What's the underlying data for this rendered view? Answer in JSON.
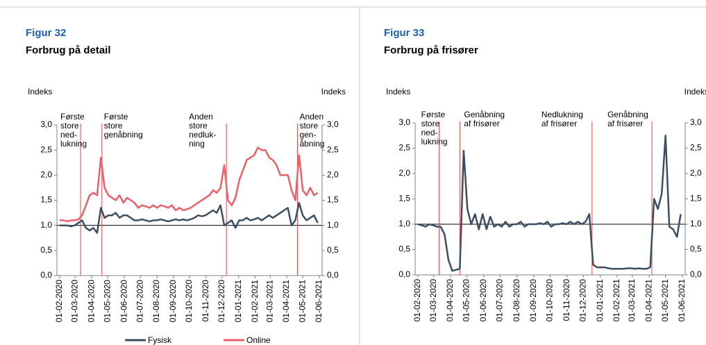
{
  "chart_data": [
    {
      "type": "line",
      "figure": "Figur 32",
      "title": "Forbrug på detail",
      "ylabel": "Indeks",
      "y2label": "Indeks",
      "ylim": [
        0,
        3
      ],
      "yticks": [
        {
          "value": 0,
          "label": "0,0"
        },
        {
          "value": 0.5,
          "label": "0,5"
        },
        {
          "value": 1,
          "label": "1,0"
        },
        {
          "value": 1.5,
          "label": "1,5"
        },
        {
          "value": 2,
          "label": "2,0"
        },
        {
          "value": 2.5,
          "label": "2,5"
        },
        {
          "value": 3,
          "label": "3,0"
        }
      ],
      "y2lim": [
        0,
        3
      ],
      "y2ticks": [
        {
          "value": 0,
          "label": "0,0"
        },
        {
          "value": 0.5,
          "label": "0,5"
        },
        {
          "value": 1,
          "label": "1,0"
        },
        {
          "value": 1.5,
          "label": "1,5"
        },
        {
          "value": 2,
          "label": "2,0"
        },
        {
          "value": 2.5,
          "label": "2,5"
        },
        {
          "value": 3,
          "label": "3,0"
        }
      ],
      "xlim": [
        "01-02-2020",
        "01-06-2021"
      ],
      "xticks": [
        "01-02-2020",
        "01-03-2020",
        "01-04-2020",
        "01-05-2020",
        "01-06-2020",
        "01-07-2020",
        "01-08-2020",
        "01-09-2020",
        "01-10-2020",
        "01-11-2020",
        "01-12-2020",
        "01-01-2021",
        "01-02-2021",
        "01-03-2021",
        "01-04-2021",
        "01-05-2021",
        "01-06-2021"
      ],
      "reference_line": 1,
      "annotations": [
        {
          "x": "11-03-2020",
          "lines": [
            "Første",
            "store",
            "ned-",
            "lukning"
          ]
        },
        {
          "x": "20-04-2020",
          "lines": [
            "Første",
            "store",
            "genåbning"
          ]
        },
        {
          "x": "09-12-2020",
          "lines": [
            "Anden",
            "store",
            "nedluk-",
            "ning"
          ]
        },
        {
          "x": "21-04-2021",
          "lines": [
            "Anden",
            "store",
            "gen-",
            "åbning"
          ]
        }
      ],
      "x": [
        "01-02-2020",
        "08-02-2020",
        "15-02-2020",
        "22-02-2020",
        "29-02-2020",
        "07-03-2020",
        "14-03-2020",
        "21-03-2020",
        "28-03-2020",
        "04-04-2020",
        "11-04-2020",
        "18-04-2020",
        "25-04-2020",
        "02-05-2020",
        "09-05-2020",
        "16-05-2020",
        "23-05-2020",
        "30-05-2020",
        "06-06-2020",
        "13-06-2020",
        "20-06-2020",
        "27-06-2020",
        "04-07-2020",
        "11-07-2020",
        "18-07-2020",
        "25-07-2020",
        "01-08-2020",
        "08-08-2020",
        "15-08-2020",
        "22-08-2020",
        "29-08-2020",
        "05-09-2020",
        "12-09-2020",
        "19-09-2020",
        "26-09-2020",
        "03-10-2020",
        "10-10-2020",
        "17-10-2020",
        "24-10-2020",
        "31-10-2020",
        "07-11-2020",
        "14-11-2020",
        "21-11-2020",
        "28-11-2020",
        "05-12-2020",
        "12-12-2020",
        "19-12-2020",
        "26-12-2020",
        "02-01-2021",
        "09-01-2021",
        "16-01-2021",
        "23-01-2021",
        "30-01-2021",
        "06-02-2021",
        "13-02-2021",
        "20-02-2021",
        "27-02-2021",
        "06-03-2021",
        "13-03-2021",
        "20-03-2021",
        "27-03-2021",
        "03-04-2021",
        "10-04-2021",
        "17-04-2021",
        "24-04-2021",
        "01-05-2021",
        "08-05-2021",
        "15-05-2021",
        "22-05-2021",
        "29-05-2021"
      ],
      "series": [
        {
          "name": "Fysisk",
          "color": "#3b4f60",
          "values": [
            1.0,
            1.0,
            1.0,
            0.98,
            1.0,
            1.05,
            1.1,
            0.95,
            0.9,
            0.95,
            0.85,
            1.35,
            1.15,
            1.2,
            1.2,
            1.25,
            1.15,
            1.2,
            1.2,
            1.15,
            1.1,
            1.1,
            1.12,
            1.1,
            1.08,
            1.1,
            1.1,
            1.12,
            1.1,
            1.08,
            1.1,
            1.12,
            1.1,
            1.12,
            1.1,
            1.12,
            1.15,
            1.2,
            1.18,
            1.2,
            1.25,
            1.3,
            1.25,
            1.4,
            1.0,
            1.05,
            1.1,
            0.95,
            1.1,
            1.1,
            1.15,
            1.1,
            1.12,
            1.15,
            1.1,
            1.15,
            1.2,
            1.15,
            1.2,
            1.25,
            1.3,
            1.35,
            1.0,
            1.1,
            1.45,
            1.2,
            1.1,
            1.15,
            1.2,
            1.05
          ]
        },
        {
          "name": "Online",
          "color": "#ea5f68",
          "values": [
            1.1,
            1.1,
            1.08,
            1.1,
            1.1,
            1.12,
            1.2,
            1.4,
            1.6,
            1.65,
            1.6,
            2.35,
            1.75,
            1.6,
            1.55,
            1.5,
            1.6,
            1.45,
            1.55,
            1.5,
            1.45,
            1.35,
            1.4,
            1.38,
            1.35,
            1.4,
            1.35,
            1.4,
            1.38,
            1.35,
            1.4,
            1.3,
            1.35,
            1.3,
            1.32,
            1.35,
            1.4,
            1.45,
            1.5,
            1.55,
            1.6,
            1.7,
            1.65,
            1.75,
            2.2,
            1.5,
            1.4,
            1.55,
            1.9,
            2.1,
            2.3,
            2.35,
            2.4,
            2.55,
            2.5,
            2.5,
            2.35,
            2.3,
            2.2,
            2.0,
            2.0,
            2.0,
            1.7,
            1.5,
            2.4,
            1.7,
            1.6,
            1.75,
            1.6,
            1.65
          ]
        }
      ]
    },
    {
      "type": "line",
      "figure": "Figur 33",
      "title": "Forbrug på frisører",
      "ylabel": "Indeks",
      "y2label": "Indeks",
      "ylim": [
        0,
        3
      ],
      "yticks": [
        {
          "value": 0,
          "label": "0,0"
        },
        {
          "value": 0.5,
          "label": "0,5"
        },
        {
          "value": 1,
          "label": "1,0"
        },
        {
          "value": 1.5,
          "label": "1,5"
        },
        {
          "value": 2,
          "label": "2,0"
        },
        {
          "value": 2.5,
          "label": "2,5"
        },
        {
          "value": 3,
          "label": "3,0"
        }
      ],
      "y2lim": [
        0,
        3
      ],
      "y2ticks": [
        {
          "value": 0,
          "label": "0,0"
        },
        {
          "value": 0.5,
          "label": "0,5"
        },
        {
          "value": 1,
          "label": "1,0"
        },
        {
          "value": 1.5,
          "label": "1,5"
        },
        {
          "value": 2,
          "label": "2,0"
        },
        {
          "value": 2.5,
          "label": "2,5"
        },
        {
          "value": 3,
          "label": "3,0"
        }
      ],
      "xlim": [
        "01-02-2020",
        "01-06-2021"
      ],
      "xticks": [
        "01-02-2020",
        "01-03-2020",
        "01-04-2020",
        "01-05-2020",
        "01-06-2020",
        "01-07-2020",
        "01-08-2020",
        "01-09-2020",
        "01-10-2020",
        "01-11-2020",
        "01-12-2020",
        "01-01-2021",
        "01-02-2021",
        "01-03-2021",
        "01-04-2021",
        "01-05-2021",
        "01-06-2021"
      ],
      "reference_line": 1,
      "annotations": [
        {
          "x": "11-03-2020",
          "lines": [
            "Første",
            "store",
            "ned-",
            "lukning"
          ]
        },
        {
          "x": "18-04-2020",
          "lines": [
            "Genåbning",
            "af frisører"
          ]
        },
        {
          "x": "17-12-2020",
          "lines": [
            "Nedlukning",
            "af frisører"
          ]
        },
        {
          "x": "06-04-2021",
          "lines": [
            "Genåbning",
            "af frisører"
          ]
        }
      ],
      "x": [
        "01-02-2020",
        "08-02-2020",
        "15-02-2020",
        "22-02-2020",
        "29-02-2020",
        "07-03-2020",
        "14-03-2020",
        "21-03-2020",
        "28-03-2020",
        "04-04-2020",
        "11-04-2020",
        "18-04-2020",
        "25-04-2020",
        "02-05-2020",
        "09-05-2020",
        "16-05-2020",
        "23-05-2020",
        "30-05-2020",
        "06-06-2020",
        "13-06-2020",
        "20-06-2020",
        "27-06-2020",
        "04-07-2020",
        "11-07-2020",
        "18-07-2020",
        "25-07-2020",
        "01-08-2020",
        "08-08-2020",
        "15-08-2020",
        "22-08-2020",
        "29-08-2020",
        "05-09-2020",
        "12-09-2020",
        "19-09-2020",
        "26-09-2020",
        "03-10-2020",
        "10-10-2020",
        "17-10-2020",
        "24-10-2020",
        "31-10-2020",
        "07-11-2020",
        "14-11-2020",
        "21-11-2020",
        "28-11-2020",
        "05-12-2020",
        "12-12-2020",
        "19-12-2020",
        "26-12-2020",
        "02-01-2021",
        "09-01-2021",
        "16-01-2021",
        "23-01-2021",
        "30-01-2021",
        "06-02-2021",
        "13-02-2021",
        "20-02-2021",
        "27-02-2021",
        "06-03-2021",
        "13-03-2021",
        "20-03-2021",
        "27-03-2021",
        "03-04-2021",
        "10-04-2021",
        "17-04-2021",
        "24-04-2021",
        "01-05-2021",
        "08-05-2021",
        "15-05-2021",
        "22-05-2021",
        "29-05-2021"
      ],
      "series": [
        {
          "color": "#3b4f60",
          "values": [
            1.0,
            0.98,
            0.95,
            1.0,
            0.98,
            0.95,
            0.95,
            0.8,
            0.3,
            0.08,
            0.1,
            0.12,
            2.45,
            1.3,
            1.0,
            1.2,
            0.9,
            1.2,
            0.9,
            1.15,
            0.95,
            1.0,
            0.95,
            1.05,
            0.95,
            1.0,
            1.0,
            1.05,
            0.95,
            1.0,
            1.0,
            1.0,
            1.02,
            1.0,
            1.05,
            0.95,
            1.0,
            1.0,
            1.02,
            1.0,
            1.05,
            1.0,
            1.05,
            1.0,
            1.05,
            1.2,
            0.2,
            0.15,
            0.15,
            0.15,
            0.13,
            0.12,
            0.12,
            0.12,
            0.12,
            0.13,
            0.13,
            0.12,
            0.13,
            0.12,
            0.12,
            0.15,
            1.5,
            1.3,
            1.6,
            2.75,
            0.95,
            0.9,
            0.75,
            1.2
          ]
        }
      ]
    }
  ]
}
